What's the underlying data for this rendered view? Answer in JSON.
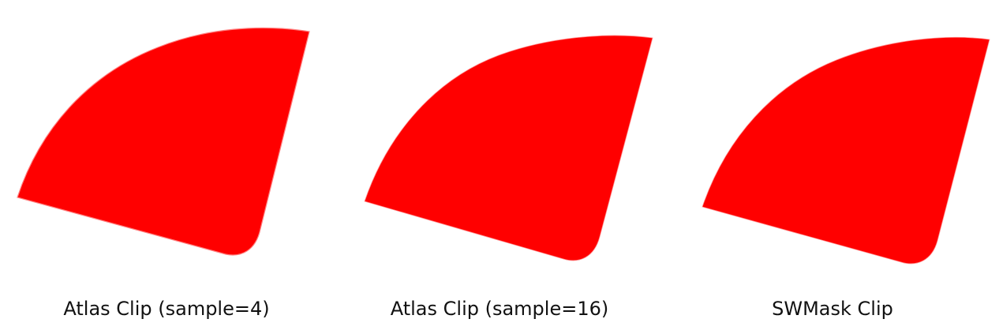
{
  "panels": [
    {
      "caption": "Atlas Clip (sample=4)",
      "fill": "#ff0000",
      "aa_quality": "coarse"
    },
    {
      "caption": "Atlas Clip (sample=16)",
      "fill": "#ff0000",
      "aa_quality": "fine"
    },
    {
      "caption": "SWMask Clip",
      "fill": "#ff0000",
      "aa_quality": "fine"
    }
  ],
  "background": "#ffffff"
}
